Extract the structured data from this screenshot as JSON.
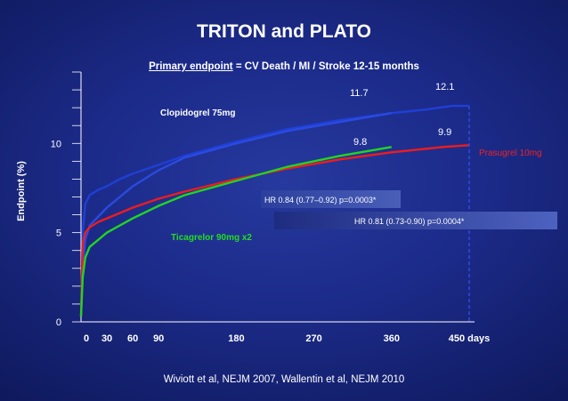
{
  "chart_data": {
    "type": "line",
    "title": "TRITON and PLATO",
    "subtitle_underlined": "Primary endpoint",
    "subtitle_rest": " = CV Death / MI / Stroke 12-15 months",
    "ylabel": "Endpoint (%)",
    "xlabel": "",
    "ylim": [
      0,
      14
    ],
    "xlim": [
      0,
      450
    ],
    "y_ticks": [
      0,
      5,
      10
    ],
    "x_ticks": [
      {
        "value": 0,
        "label": "0"
      },
      {
        "value": 30,
        "label": "30"
      },
      {
        "value": 60,
        "label": "60"
      },
      {
        "value": 90,
        "label": "90"
      },
      {
        "value": 180,
        "label": "180"
      },
      {
        "value": 270,
        "label": "270"
      },
      {
        "value": 360,
        "label": "360"
      },
      {
        "value": 450,
        "label": "450 days"
      }
    ],
    "series": [
      {
        "name": "Clopidogrel 75mg (TRITON)",
        "color": "#1f3fd6",
        "x": [
          0,
          2,
          5,
          10,
          20,
          30,
          45,
          60,
          90,
          120,
          180,
          240,
          300,
          360,
          400,
          430,
          450
        ],
        "y": [
          0.3,
          5.0,
          6.6,
          7.1,
          7.4,
          7.6,
          8.0,
          8.3,
          8.8,
          9.3,
          10.1,
          10.8,
          11.3,
          11.7,
          11.9,
          12.1,
          12.1
        ]
      },
      {
        "name": "Clopidogrel 75mg (PLATO)",
        "color": "#2a4ae0",
        "x": [
          0,
          2,
          5,
          10,
          20,
          30,
          45,
          60,
          90,
          120,
          180,
          240,
          300,
          360
        ],
        "y": [
          0.3,
          3.0,
          4.6,
          5.4,
          5.9,
          6.4,
          7.0,
          7.6,
          8.5,
          9.2,
          10.0,
          10.7,
          11.2,
          11.7
        ]
      },
      {
        "name": "Prasugrel 10mg",
        "color": "#ee1c1c",
        "x": [
          0,
          2,
          5,
          10,
          20,
          30,
          45,
          60,
          90,
          120,
          180,
          240,
          300,
          360,
          420,
          450
        ],
        "y": [
          0.3,
          4.4,
          5.0,
          5.3,
          5.6,
          5.8,
          6.1,
          6.4,
          6.9,
          7.3,
          8.0,
          8.6,
          9.1,
          9.5,
          9.8,
          9.9
        ]
      },
      {
        "name": "Ticagrelor 90mg x2",
        "color": "#22d422",
        "x": [
          0,
          2,
          5,
          10,
          20,
          30,
          45,
          60,
          90,
          120,
          180,
          240,
          300,
          360
        ],
        "y": [
          0.3,
          2.5,
          3.6,
          4.2,
          4.6,
          5.0,
          5.4,
          5.8,
          6.5,
          7.1,
          7.9,
          8.7,
          9.3,
          9.8
        ]
      }
    ],
    "annotations": {
      "clopidogrel_label": "Clopidogrel 75mg",
      "prasugrel_label": "Prasugrel 10mg",
      "ticagrelor_label": "Ticagrelor 90mg x2",
      "val_plato_clopi": "11.7",
      "val_triton_clopi": "12.1",
      "val_plato_tica": "9.8",
      "val_triton_pras": "9.9",
      "hr_triton": "HR 0.84 (0.77–0.92) p=0.0003*",
      "hr_plato": "HR 0.81 (0.73-0.90) p=0.0004*"
    }
  },
  "citation": "Wiviott et al, NEJM 2007, Wallentin et al, NEJM 2010"
}
